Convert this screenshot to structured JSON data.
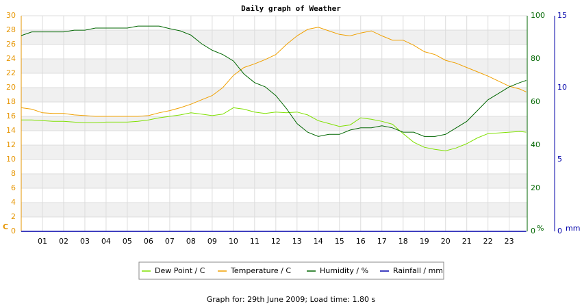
{
  "chart_data": {
    "type": "line",
    "title": "Daily graph of Weather",
    "footer": "Graph for: 29th June 2009; Load time: 1.80 s",
    "y_label": "C",
    "y2_label": "%",
    "y3_label": "mm",
    "x": [
      0,
      0.5,
      1,
      1.5,
      2,
      2.5,
      3,
      3.5,
      4,
      4.5,
      5,
      5.5,
      6,
      6.5,
      7,
      7.5,
      8,
      8.5,
      9,
      9.5,
      10,
      10.5,
      11,
      11.5,
      12,
      12.5,
      13,
      13.5,
      14,
      14.5,
      15,
      15.5,
      16,
      16.5,
      17,
      17.5,
      18,
      18.5,
      19,
      19.5,
      20,
      20.5,
      21,
      21.5,
      22,
      22.5,
      23,
      23.5,
      23.8
    ],
    "xlim": [
      0,
      23.85
    ],
    "xticks": [
      {
        "value": 1,
        "label": "01"
      },
      {
        "value": 2,
        "label": "02"
      },
      {
        "value": 3,
        "label": "03"
      },
      {
        "value": 4,
        "label": "04"
      },
      {
        "value": 5,
        "label": "05"
      },
      {
        "value": 6,
        "label": "06"
      },
      {
        "value": 7,
        "label": "07"
      },
      {
        "value": 8,
        "label": "08"
      },
      {
        "value": 9,
        "label": "09"
      },
      {
        "value": 10,
        "label": "10"
      },
      {
        "value": 11,
        "label": "11"
      },
      {
        "value": 12,
        "label": "12"
      },
      {
        "value": 13,
        "label": "13"
      },
      {
        "value": 14,
        "label": "14"
      },
      {
        "value": 15,
        "label": "15"
      },
      {
        "value": 16,
        "label": "16"
      },
      {
        "value": 17,
        "label": "17"
      },
      {
        "value": 18,
        "label": "18"
      },
      {
        "value": 19,
        "label": "19"
      },
      {
        "value": 20,
        "label": "20"
      },
      {
        "value": 21,
        "label": "21"
      },
      {
        "value": 22,
        "label": "22"
      },
      {
        "value": 23,
        "label": "23"
      }
    ],
    "ylim": [
      0,
      30
    ],
    "yticks": [
      0,
      2,
      4,
      6,
      8,
      10,
      12,
      14,
      16,
      18,
      20,
      22,
      24,
      26,
      28,
      30
    ],
    "y2lim": [
      0,
      100
    ],
    "y2ticks": [
      0,
      20,
      40,
      60,
      80,
      100
    ],
    "y3lim": [
      0,
      15
    ],
    "y3ticks": [
      0,
      5,
      10,
      15
    ],
    "grid": true,
    "series": [
      {
        "name": "Dew Point / C",
        "color": "#7fe000",
        "axis": "y",
        "values": [
          15.5,
          15.5,
          15.4,
          15.3,
          15.3,
          15.2,
          15.1,
          15.1,
          15.2,
          15.2,
          15.2,
          15.3,
          15.5,
          15.8,
          16.0,
          16.2,
          16.5,
          16.3,
          16.1,
          16.3,
          17.2,
          17.0,
          16.6,
          16.4,
          16.6,
          16.5,
          16.6,
          16.2,
          15.4,
          15.0,
          14.6,
          14.8,
          15.8,
          15.6,
          15.3,
          14.9,
          13.6,
          12.4,
          11.7,
          11.4,
          11.2,
          11.6,
          12.2,
          13.0,
          13.6,
          13.7,
          13.8,
          13.9,
          13.8
        ]
      },
      {
        "name": "Temperature / C",
        "color": "#f0a000",
        "axis": "y",
        "values": [
          17.2,
          17.0,
          16.5,
          16.4,
          16.4,
          16.2,
          16.1,
          16.0,
          16.0,
          16.0,
          16.0,
          16.0,
          16.1,
          16.5,
          16.8,
          17.2,
          17.7,
          18.3,
          18.9,
          20.0,
          21.7,
          22.8,
          23.3,
          23.9,
          24.6,
          26.0,
          27.2,
          28.1,
          28.4,
          27.9,
          27.4,
          27.2,
          27.6,
          27.9,
          27.2,
          26.6,
          26.6,
          25.9,
          25.0,
          24.6,
          23.8,
          23.4,
          22.8,
          22.2,
          21.6,
          20.9,
          20.2,
          19.8,
          19.4
        ]
      },
      {
        "name": "Humidity / %",
        "color": "#006600",
        "axis": "y2",
        "values": [
          90.8,
          92.5,
          92.5,
          92.5,
          92.5,
          93.3,
          93.3,
          94.3,
          94.3,
          94.3,
          94.3,
          95.2,
          95.2,
          95.2,
          94,
          93,
          91,
          87,
          84,
          82,
          79,
          73,
          69,
          67,
          63,
          57,
          50,
          46,
          44,
          45,
          45,
          47,
          48,
          48,
          49,
          48,
          46,
          46,
          44,
          44,
          45,
          48,
          51,
          56,
          61,
          64,
          67,
          69,
          70
        ]
      },
      {
        "name": "Rainfall / mm",
        "color": "#0000aa",
        "axis": "y3",
        "values": [
          0,
          0,
          0,
          0,
          0,
          0,
          0,
          0,
          0,
          0,
          0,
          0,
          0,
          0,
          0,
          0,
          0,
          0,
          0,
          0,
          0,
          0,
          0,
          0,
          0,
          0,
          0,
          0,
          0,
          0,
          0,
          0,
          0,
          0,
          0,
          0,
          0,
          0,
          0,
          0,
          0,
          0,
          0,
          0,
          0,
          0,
          0,
          0,
          0
        ]
      }
    ]
  }
}
